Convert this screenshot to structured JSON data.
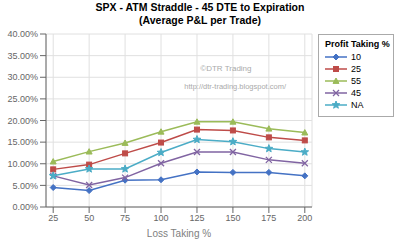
{
  "chart_data": {
    "type": "line",
    "title": "SPX - ATM Straddle - 45 DTE to Expiration",
    "subtitle": "(Average P&L per Trade)",
    "x_label": "Loss Taking %",
    "x": [
      25,
      50,
      75,
      100,
      125,
      150,
      175,
      200
    ],
    "xlim": [
      20,
      205
    ],
    "xticks": [
      25,
      50,
      75,
      100,
      125,
      150,
      175,
      200
    ],
    "ylim": [
      0.0,
      0.4
    ],
    "yticks": [
      {
        "value": 0.0,
        "label": "0.00%"
      },
      {
        "value": 0.05,
        "label": "5.00%"
      },
      {
        "value": 0.1,
        "label": "10.00%"
      },
      {
        "value": 0.15,
        "label": "15.00%"
      },
      {
        "value": 0.2,
        "label": "20.00%"
      },
      {
        "value": 0.25,
        "label": "25.00%"
      },
      {
        "value": 0.3,
        "label": "30.00%"
      },
      {
        "value": 0.35,
        "label": "35.00%"
      },
      {
        "value": 0.4,
        "label": "40.00%"
      }
    ],
    "grid": true,
    "legend": "right",
    "legend_title": "Profit Taking %",
    "series": [
      {
        "name": "10",
        "color": "#4472C4",
        "marker": "diamond",
        "values": [
          0.045,
          0.038,
          0.062,
          0.063,
          0.081,
          0.08,
          0.08,
          0.072
        ]
      },
      {
        "name": "25",
        "color": "#BE4B48",
        "marker": "square",
        "values": [
          0.087,
          0.098,
          0.124,
          0.149,
          0.179,
          0.177,
          0.161,
          0.154
        ]
      },
      {
        "name": "55",
        "color": "#9BBB59",
        "marker": "triangle",
        "values": [
          0.105,
          0.128,
          0.148,
          0.174,
          0.197,
          0.197,
          0.181,
          0.172
        ]
      },
      {
        "name": "45",
        "color": "#8064A2",
        "marker": "x",
        "values": [
          0.072,
          0.051,
          0.068,
          0.101,
          0.127,
          0.127,
          0.109,
          0.101
        ]
      },
      {
        "name": "NA",
        "color": "#4BACC6",
        "marker": "star",
        "values": [
          0.072,
          0.088,
          0.088,
          0.126,
          0.156,
          0.151,
          0.135,
          0.127
        ]
      }
    ],
    "annotations": [
      {
        "text": "©DTR Trading"
      },
      {
        "text": "http://dtr-trading.blogspot.com/"
      }
    ]
  }
}
